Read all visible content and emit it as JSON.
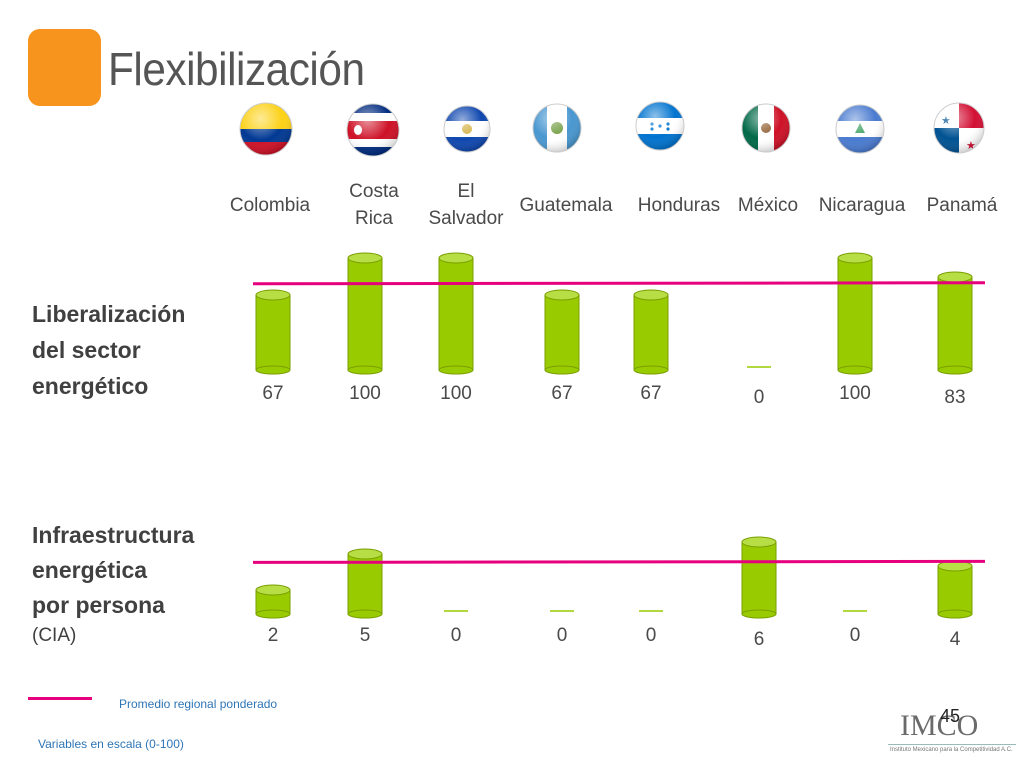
{
  "slide": {
    "title": "Flexibilización",
    "page_number": "45",
    "accent_color": "#F7941D",
    "legend_label": "Promedio regional ponderado",
    "scale_note": "Variables en escala (0-100)",
    "logo_text": "IMCO",
    "logo_subtitle": "Instituto Mexicano para la Competitividad A.C."
  },
  "countries": [
    {
      "name": "Colombia",
      "flag": "colombia-flag"
    },
    {
      "name": "Costa\nRica",
      "flag": "costa-rica-flag"
    },
    {
      "name": "El\nSalvador",
      "flag": "el-salvador-flag"
    },
    {
      "name": "Guatemala",
      "flag": "guatemala-flag"
    },
    {
      "name": "Honduras",
      "flag": "honduras-flag"
    },
    {
      "name": "México",
      "flag": "mexico-flag"
    },
    {
      "name": "Nicaragua",
      "flag": "nicaragua-flag"
    },
    {
      "name": "Panamá",
      "flag": "panama-flag"
    }
  ],
  "sections": {
    "energy_liberalization": [
      "Liberalización",
      "del sector",
      "energético"
    ],
    "energy_infrastructure": [
      "Infraestructura",
      "energética",
      "por persona"
    ],
    "energy_infrastructure_source": "(CIA)"
  },
  "chart_data": [
    {
      "type": "bar",
      "title": "Liberalización del sector energético",
      "categories": [
        "Colombia",
        "Costa Rica",
        "El Salvador",
        "Guatemala",
        "Honduras",
        "México",
        "Nicaragua",
        "Panamá"
      ],
      "values": [
        67,
        100,
        100,
        67,
        67,
        0,
        100,
        83
      ],
      "reference_line": {
        "label": "Promedio regional ponderado",
        "value": 77
      },
      "ylim": [
        0,
        100
      ],
      "bar_color": "#99CC00",
      "line_color": "#E6007E"
    },
    {
      "type": "bar",
      "title": "Infraestructura energética por persona (CIA)",
      "categories": [
        "Colombia",
        "Costa Rica",
        "El Salvador",
        "Guatemala",
        "Honduras",
        "México",
        "Nicaragua",
        "Panamá"
      ],
      "values": [
        2,
        5,
        0,
        0,
        0,
        6,
        0,
        4
      ],
      "reference_line": {
        "label": "Promedio regional ponderado",
        "value": 4.3
      },
      "ylim": [
        0,
        6
      ],
      "bar_color": "#99CC00",
      "line_color": "#E6007E"
    }
  ]
}
